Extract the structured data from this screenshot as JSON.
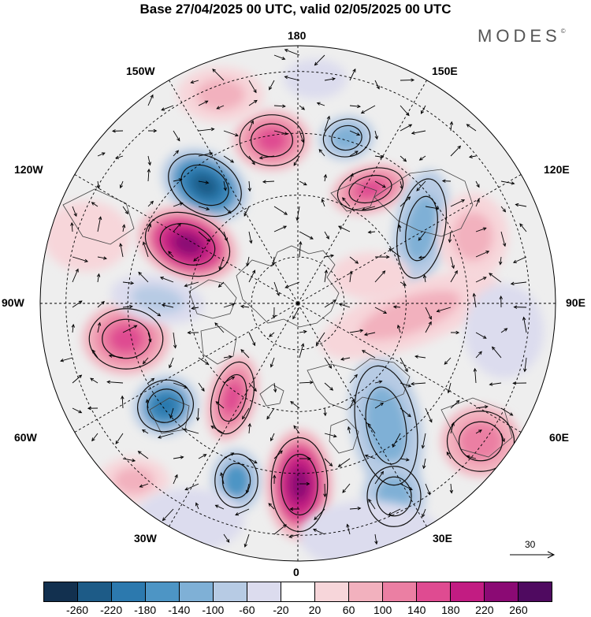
{
  "title": "Base 27/04/2025 00 UTC, valid 02/05/2025 00 UTC",
  "brand": "MODES",
  "brand_mark": "©",
  "longitude_labels": {
    "lon_180": "180",
    "lon_150w": "150W",
    "lon_150e": "150E",
    "lon_120w": "120W",
    "lon_120e": "120E",
    "lon_90w": "90W",
    "lon_90e": "90E",
    "lon_60w": "60W",
    "lon_60e": "60E",
    "lon_30w": "30W",
    "lon_30e": "30E",
    "lon_0": "0"
  },
  "reference_vector": "30",
  "colorbar": {
    "ticks": [
      "-260",
      "-220",
      "-180",
      "-140",
      "-100",
      "-60",
      "-20",
      "20",
      "60",
      "100",
      "140",
      "180",
      "220",
      "260"
    ],
    "colors": [
      "#12304f",
      "#1d5b87",
      "#2c79ae",
      "#4d95c5",
      "#7fb0d6",
      "#b7cbe4",
      "#dcdcee",
      "#ffffff",
      "#f7d6da",
      "#f2b1be",
      "#eb7fa3",
      "#df4b91",
      "#c21c82",
      "#8b0a74",
      "#4f0a60"
    ]
  },
  "colors": {
    "neutral_fill": "#eeeeee",
    "coast": "#444444",
    "grid": "#000000"
  },
  "icons": {
    "reference_arrow": "arrow-right-icon"
  }
}
